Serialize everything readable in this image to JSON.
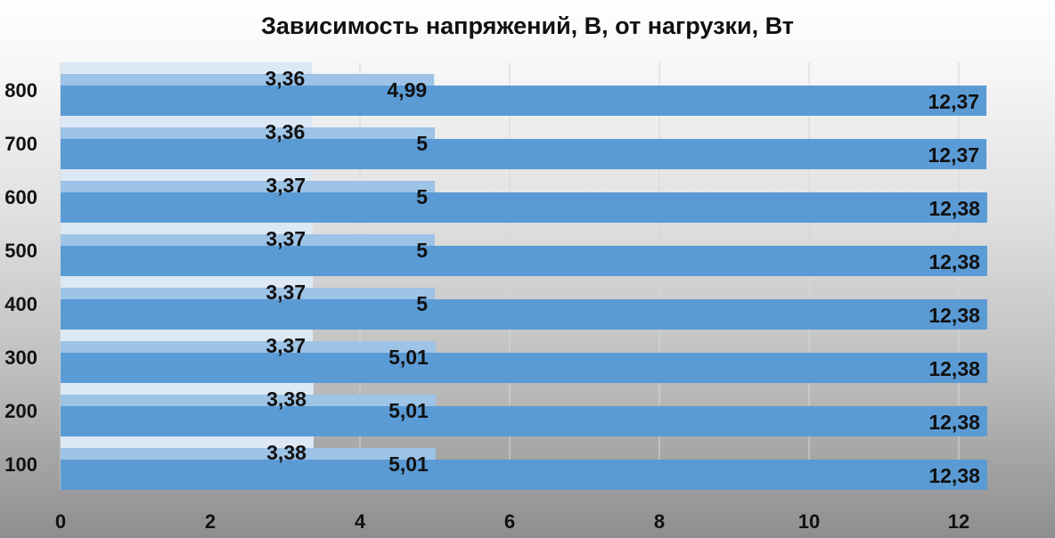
{
  "chart_data": {
    "type": "bar",
    "orientation": "horizontal",
    "title": "Зависимость напряжений, В, от нагрузки, Вт",
    "xlabel": "",
    "ylabel": "",
    "categories": [
      "100",
      "200",
      "300",
      "400",
      "500",
      "600",
      "700",
      "800"
    ],
    "category_labels": [
      "100",
      "200",
      "300",
      "400",
      "500",
      "600",
      "700",
      "800"
    ],
    "xlim": [
      0,
      12.5
    ],
    "x_ticks": [
      0,
      2,
      4,
      6,
      8,
      10,
      12
    ],
    "x_tick_labels": [
      "0",
      "2",
      "4",
      "6",
      "8",
      "10",
      "12"
    ],
    "grid": true,
    "legend": "none",
    "series": [
      {
        "color": "#dde8f5",
        "values": [
          3.38,
          3.38,
          3.37,
          3.37,
          3.37,
          3.37,
          3.36,
          3.36
        ],
        "labels": [
          "3,38",
          "3,38",
          "3,37",
          "3,37",
          "3,37",
          "3,37",
          "3,36",
          "3,36"
        ]
      },
      {
        "color": "#9dc3e6",
        "values": [
          5.01,
          5.01,
          5.01,
          5,
          5,
          5,
          5,
          4.99
        ],
        "labels": [
          "5,01",
          "5,01",
          "5,01",
          "5",
          "5",
          "5",
          "5",
          "4,99"
        ]
      },
      {
        "color": "#5b9bd5",
        "values": [
          12.38,
          12.38,
          12.38,
          12.38,
          12.38,
          12.38,
          12.37,
          12.37
        ],
        "labels": [
          "12,38",
          "12,38",
          "12,38",
          "12,38",
          "12,38",
          "12,38",
          "12,37",
          "12,37"
        ]
      }
    ]
  }
}
